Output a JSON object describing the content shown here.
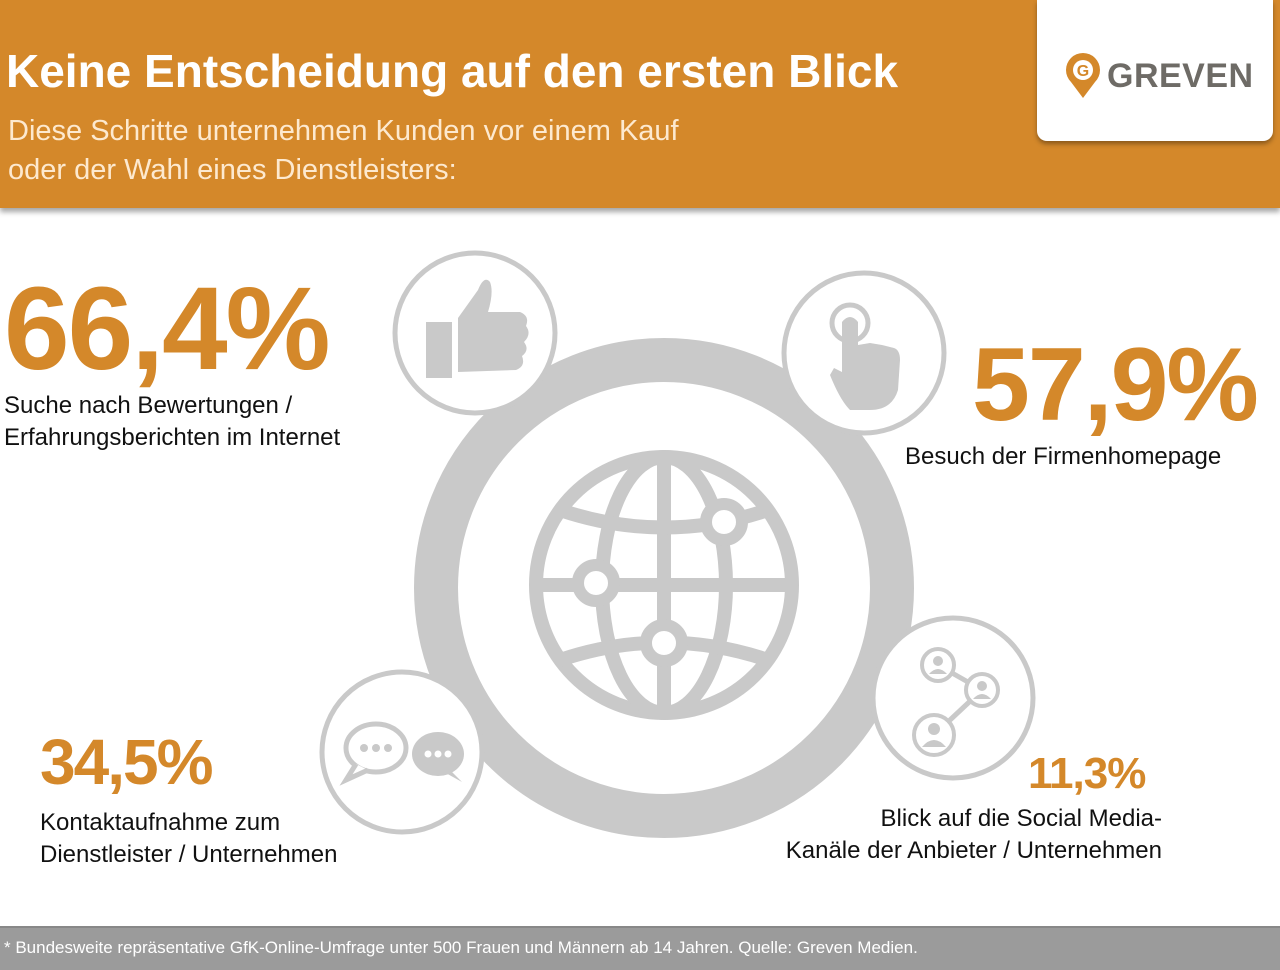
{
  "header": {
    "title": "Keine Entscheidung auf den ersten Blick",
    "subtitle_line1": "Diese Schritte unternehmen Kunden vor einem Kauf",
    "subtitle_line2": "oder der Wahl eines Dienstleisters:",
    "logo": "GREVEN",
    "logo_pin_letter": "G"
  },
  "colors": {
    "accent": "#d4882a",
    "icon_gray": "#c9c9c9",
    "footer": "#9b9b9b"
  },
  "stats": [
    {
      "value": "66,4%",
      "label_line1": "Suche nach Bewertungen /",
      "label_line2": "Erfahrungsberichten im Internet",
      "icon": "thumbs-up-icon"
    },
    {
      "value": "57,9%",
      "label_line1": "Besuch der Firmenhomepage",
      "icon": "pointing-hand-icon"
    },
    {
      "value": "34,5%",
      "label_line1": "Kontaktaufnahme zum",
      "label_line2": "Dienstleister / Unternehmen",
      "icon": "chat-bubbles-icon"
    },
    {
      "value": "11,3%",
      "label_line1": "Blick auf die Social Media-",
      "label_line2": "Kanäle der Anbieter / Unternehmen",
      "icon": "social-network-icon"
    }
  ],
  "center_icon": "globe-network-icon",
  "footer": {
    "note": "* Bundesweite repräsentative GfK-Online-Umfrage unter 500 Frauen und Männern ab 14 Jahren. Quelle: Greven Medien."
  }
}
